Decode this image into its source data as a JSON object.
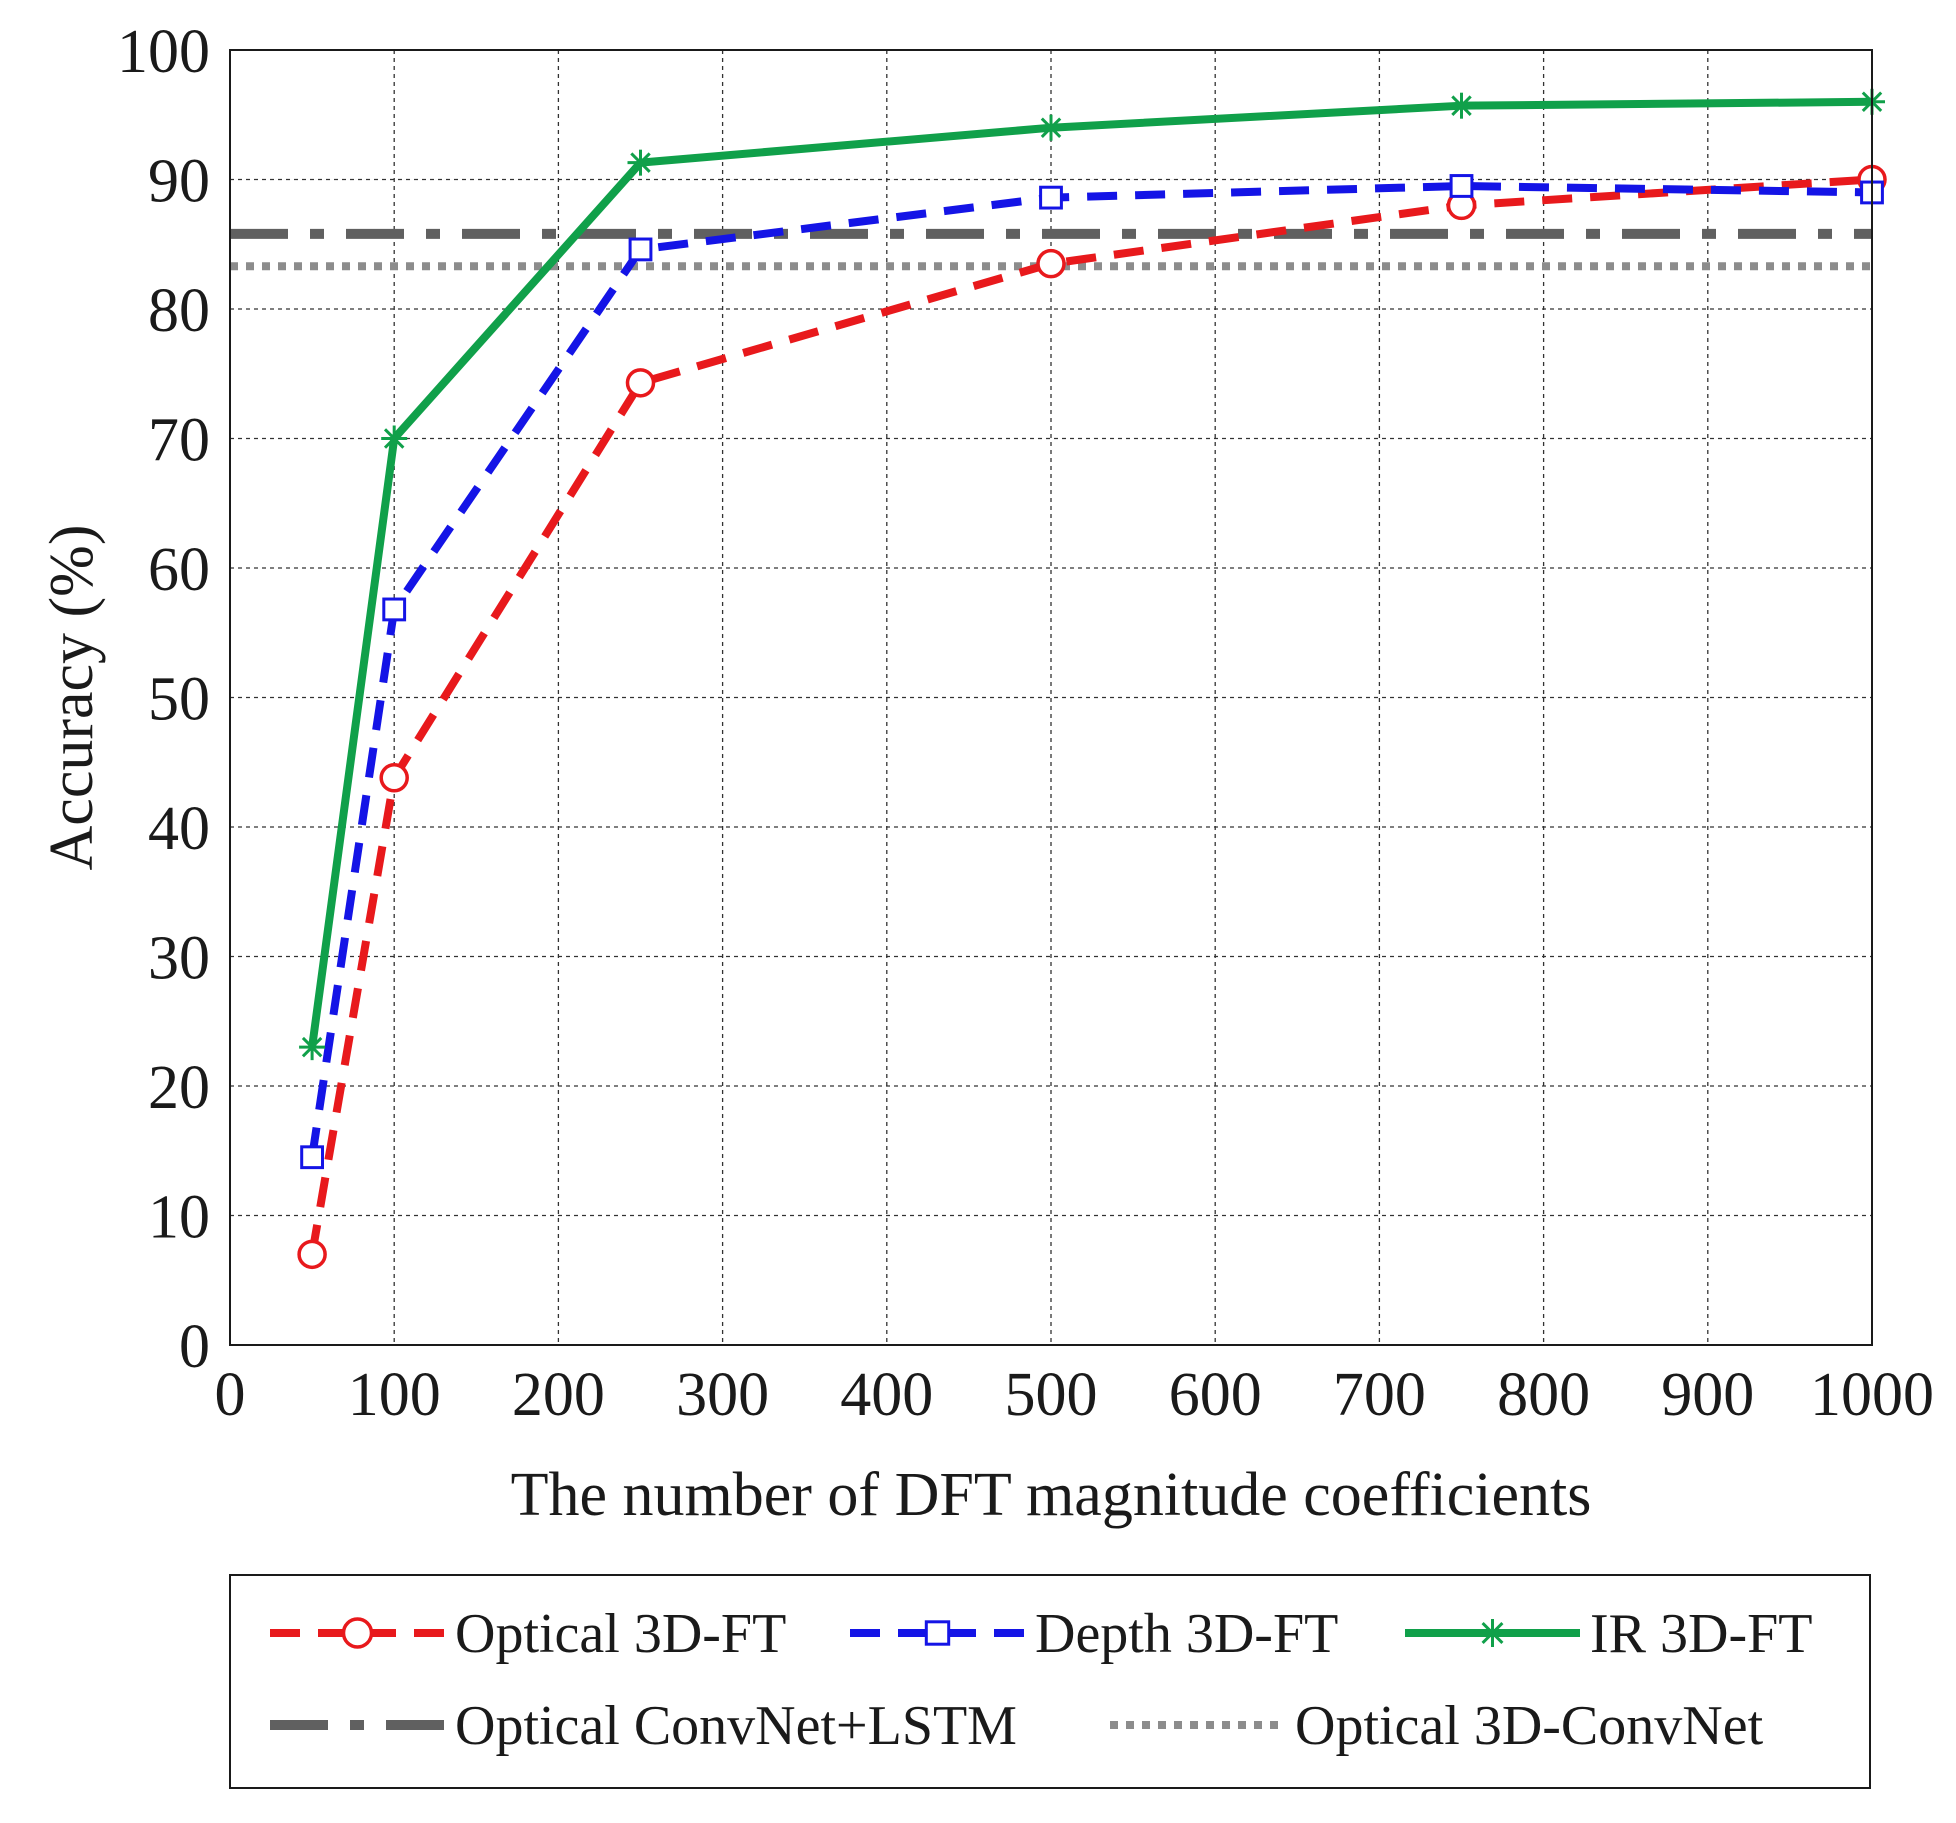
{
  "chart_data": {
    "type": "line",
    "title": "",
    "xlabel": "The number of DFT magnitude coefficients",
    "ylabel": "Accuracy (%)",
    "xlim": [
      0,
      1000
    ],
    "ylim": [
      0,
      100
    ],
    "grid": true,
    "x_ticks": [
      0,
      100,
      200,
      300,
      400,
      500,
      600,
      700,
      800,
      900,
      1000
    ],
    "y_ticks": [
      0,
      10,
      20,
      30,
      40,
      50,
      60,
      70,
      80,
      90,
      100
    ],
    "x_tick_labels": [
      "0",
      "100",
      "200",
      "300",
      "400",
      "500",
      "600",
      "700",
      "800",
      "900",
      "1000"
    ],
    "y_tick_labels": [
      "0",
      "10",
      "20",
      "30",
      "40",
      "50",
      "60",
      "70",
      "80",
      "90",
      "100"
    ],
    "x": [
      50,
      100,
      250,
      500,
      750,
      1000
    ],
    "series": [
      {
        "name": "Optical 3D-FT",
        "values": [
          7.0,
          43.8,
          74.3,
          83.5,
          88.0,
          90.0
        ],
        "color": "#e8191c",
        "style": "dashed",
        "marker": "circle"
      },
      {
        "name": "Depth 3D-FT",
        "values": [
          14.5,
          56.8,
          84.6,
          88.6,
          89.5,
          89.0
        ],
        "color": "#1414e6",
        "style": "dashed",
        "marker": "square"
      },
      {
        "name": "IR 3D-FT",
        "values": [
          23.0,
          70.0,
          91.3,
          94.0,
          95.7,
          96.0
        ],
        "color": "#10a04a",
        "style": "solid",
        "marker": "asterisk"
      }
    ],
    "reference_lines": [
      {
        "name": "Optical ConvNet+LSTM",
        "value": 85.8,
        "color": "#606060",
        "style": "dashdot"
      },
      {
        "name": "Optical 3D-ConvNet",
        "value": 83.3,
        "color": "#8c8c8c",
        "style": "dotted"
      }
    ],
    "legend_position": "bottom-outside"
  }
}
